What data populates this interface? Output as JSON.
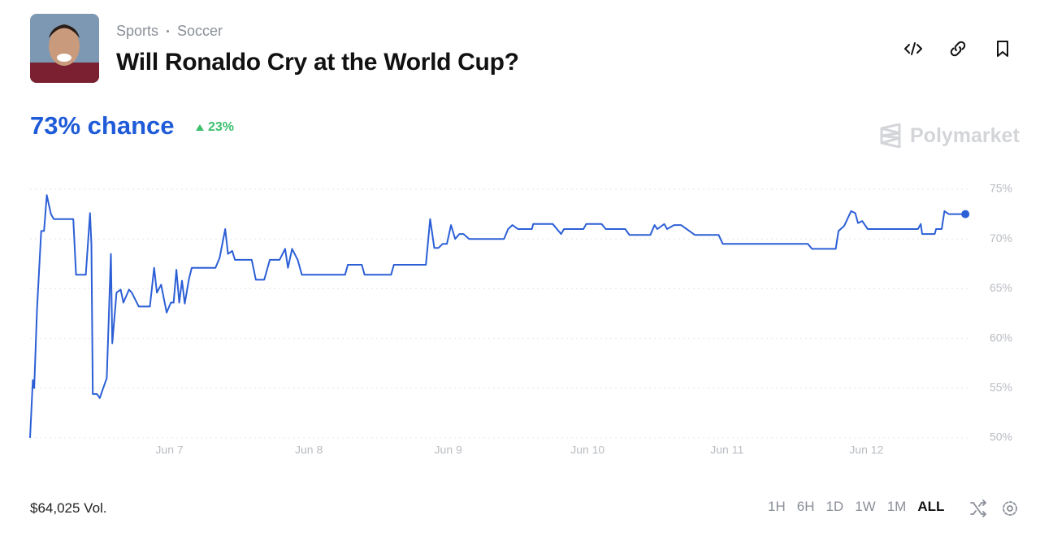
{
  "header": {
    "breadcrumb": [
      "Sports",
      "Soccer"
    ],
    "title": "Will Ronaldo Cry at the World Cup?"
  },
  "summary": {
    "chance": "73% chance",
    "change": "23%"
  },
  "brand": "Polymarket",
  "chart_data": {
    "type": "line",
    "color": "#2c5fd6",
    "x": [
      6.0,
      6.02,
      6.03,
      6.05,
      6.08,
      6.1,
      6.12,
      6.15,
      6.17,
      6.31,
      6.33,
      6.4,
      6.43,
      6.44,
      6.45,
      6.48,
      6.5,
      6.52,
      6.55,
      6.58,
      6.59,
      6.62,
      6.65,
      6.67,
      6.71,
      6.73,
      6.78,
      6.86,
      6.89,
      6.91,
      6.94,
      6.98,
      7.01,
      7.03,
      7.05,
      7.07,
      7.09,
      7.11,
      7.14,
      7.16,
      7.33,
      7.36,
      7.4,
      7.42,
      7.45,
      7.47,
      7.59,
      7.62,
      7.68,
      7.72,
      7.79,
      7.83,
      7.85,
      7.88,
      7.92,
      7.95,
      8.26,
      8.28,
      8.38,
      8.4,
      8.59,
      8.61,
      8.84,
      8.87,
      8.9,
      8.93,
      8.96,
      8.99,
      9.02,
      9.05,
      9.08,
      9.11,
      9.15,
      9.4,
      9.43,
      9.46,
      9.5,
      9.6,
      9.61,
      9.75,
      9.81,
      9.83,
      9.97,
      9.99,
      10.1,
      10.13,
      10.27,
      10.3,
      10.45,
      10.48,
      10.5,
      10.55,
      10.57,
      10.62,
      10.67,
      10.77,
      10.94,
      10.97,
      11.58,
      11.61,
      11.78,
      11.8,
      11.84,
      11.89,
      11.92,
      11.94,
      11.97,
      12.01,
      12.37,
      12.39,
      12.4,
      12.49,
      12.5,
      12.54,
      12.56,
      12.59,
      12.71
    ],
    "values": [
      50,
      55.8,
      55,
      63,
      70.8,
      70.8,
      74.4,
      72.5,
      72,
      72,
      66.4,
      66.4,
      72.6,
      69.5,
      54.4,
      54.4,
      54,
      54.8,
      56,
      68.5,
      59.5,
      64.6,
      64.9,
      63.6,
      64.9,
      64.6,
      63.2,
      63.2,
      67.1,
      64.6,
      65.4,
      62.6,
      63.6,
      63.6,
      66.9,
      63.6,
      65.8,
      63.5,
      66,
      67.1,
      67.1,
      68.1,
      71,
      68.5,
      68.8,
      67.9,
      67.9,
      65.9,
      65.9,
      67.9,
      67.9,
      69,
      67.1,
      69,
      67.9,
      66.4,
      66.4,
      67.4,
      67.4,
      66.4,
      66.4,
      67.4,
      67.4,
      72,
      69.1,
      69.1,
      69.5,
      69.5,
      71.4,
      70,
      70.5,
      70.5,
      70,
      70,
      71,
      71.4,
      71,
      71,
      71.5,
      71.5,
      70.5,
      71,
      71,
      71.5,
      71.5,
      71,
      71,
      70.4,
      70.4,
      71.4,
      71,
      71.5,
      71,
      71.4,
      71.4,
      70.4,
      70.4,
      69.5,
      69.5,
      69,
      69,
      70.8,
      71.3,
      72.8,
      72.6,
      71.6,
      71.8,
      71,
      71,
      71.5,
      70.5,
      70.5,
      71,
      71,
      72.8,
      72.5,
      72.5
    ],
    "xlim": [
      6,
      12.75
    ],
    "ylim": [
      50,
      75
    ],
    "xticks": [
      {
        "value": 7,
        "label": "Jun 7"
      },
      {
        "value": 8,
        "label": "Jun 8"
      },
      {
        "value": 9,
        "label": "Jun 9"
      },
      {
        "value": 10,
        "label": "Jun 10"
      },
      {
        "value": 11,
        "label": "Jun 11"
      },
      {
        "value": 12,
        "label": "Jun 12"
      }
    ],
    "yticks": [
      {
        "value": 50,
        "label": "50%"
      },
      {
        "value": 55,
        "label": "55%"
      },
      {
        "value": 60,
        "label": "60%"
      },
      {
        "value": 65,
        "label": "65%"
      },
      {
        "value": 70,
        "label": "70%"
      },
      {
        "value": 75,
        "label": "75%"
      }
    ],
    "grid": true
  },
  "footer": {
    "volume": "$64,025 Vol.",
    "ranges": [
      "1H",
      "6H",
      "1D",
      "1W",
      "1M",
      "ALL"
    ],
    "active_range": 5
  }
}
